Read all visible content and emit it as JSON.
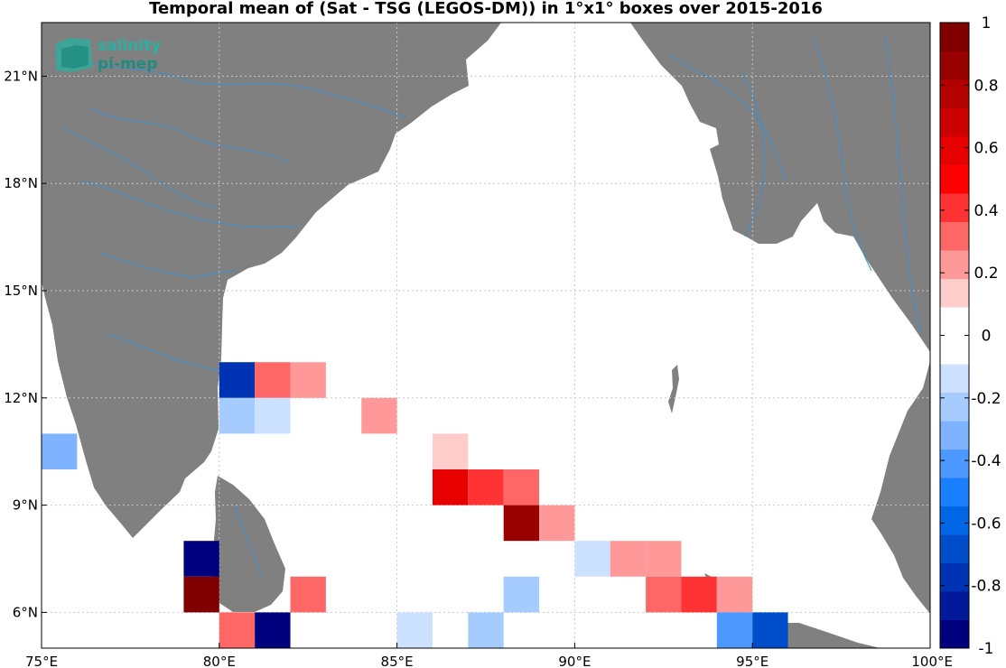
{
  "chart_data": {
    "type": "heatmap",
    "title": "Temporal mean of (Sat - TSG (LEGOS-DM)) in 1°x1° boxes over 2015-2016",
    "xlabel": "",
    "ylabel": "",
    "xlim": [
      75,
      100
    ],
    "ylim": [
      5,
      22.5
    ],
    "grid": true,
    "x_ticks": [
      {
        "value": 75,
        "label": "75°E"
      },
      {
        "value": 80,
        "label": "80°E"
      },
      {
        "value": 85,
        "label": "85°E"
      },
      {
        "value": 90,
        "label": "90°E"
      },
      {
        "value": 95,
        "label": "95°E"
      },
      {
        "value": 100,
        "label": "100°E"
      }
    ],
    "y_ticks": [
      {
        "value": 6,
        "label": "6°N"
      },
      {
        "value": 9,
        "label": "9°N"
      },
      {
        "value": 12,
        "label": "12°N"
      },
      {
        "value": 15,
        "label": "15°N"
      },
      {
        "value": 18,
        "label": "18°N"
      },
      {
        "value": 21,
        "label": "21°N"
      }
    ],
    "colorbar": {
      "range": [
        -1,
        1
      ],
      "step": 0.1,
      "ticks": [
        {
          "value": 1,
          "label": "1"
        },
        {
          "value": 0.8,
          "label": "0.8"
        },
        {
          "value": 0.6,
          "label": "0.6"
        },
        {
          "value": 0.4,
          "label": "0.4"
        },
        {
          "value": 0.2,
          "label": "0.2"
        },
        {
          "value": 0,
          "label": "0"
        },
        {
          "value": -0.2,
          "label": "-0.2"
        },
        {
          "value": -0.4,
          "label": "-0.4"
        },
        {
          "value": -0.6,
          "label": "-0.6"
        },
        {
          "value": -0.8,
          "label": "-0.8"
        },
        {
          "value": -1,
          "label": "-1"
        }
      ],
      "colors": [
        "#00007f",
        "#001a99",
        "#0033b3",
        "#004dcc",
        "#0066e6",
        "#1a80ff",
        "#4d99ff",
        "#80b3ff",
        "#a6ccff",
        "#cce0ff",
        "#ffffff",
        "#ffffff",
        "#ffcccc",
        "#ff9999",
        "#ff6666",
        "#ff3333",
        "#ff0000",
        "#e60000",
        "#cc0000",
        "#b30000",
        "#990000",
        "#800000"
      ]
    },
    "cells": [
      {
        "lon": 80.5,
        "lat": 12.5,
        "value": -0.75
      },
      {
        "lon": 81.5,
        "lat": 12.5,
        "value": 0.35
      },
      {
        "lon": 82.5,
        "lat": 12.5,
        "value": 0.25
      },
      {
        "lon": 80.5,
        "lat": 11.5,
        "value": -0.25
      },
      {
        "lon": 81.5,
        "lat": 11.5,
        "value": -0.15
      },
      {
        "lon": 84.5,
        "lat": 11.5,
        "value": 0.25
      },
      {
        "lon": 75.5,
        "lat": 10.5,
        "value": -0.35
      },
      {
        "lon": 86.5,
        "lat": 10.5,
        "value": 0.15
      },
      {
        "lon": 86.5,
        "lat": 9.5,
        "value": 0.55
      },
      {
        "lon": 87.5,
        "lat": 9.5,
        "value": 0.45
      },
      {
        "lon": 88.5,
        "lat": 9.5,
        "value": 0.35
      },
      {
        "lon": 88.5,
        "lat": 8.5,
        "value": 0.85
      },
      {
        "lon": 89.5,
        "lat": 8.5,
        "value": 0.25
      },
      {
        "lon": 79.5,
        "lat": 7.5,
        "value": -0.95
      },
      {
        "lon": 90.5,
        "lat": 7.5,
        "value": -0.15
      },
      {
        "lon": 91.5,
        "lat": 7.5,
        "value": 0.25
      },
      {
        "lon": 92.5,
        "lat": 7.5,
        "value": 0.25
      },
      {
        "lon": 79.5,
        "lat": 6.5,
        "value": 0.95
      },
      {
        "lon": 82.5,
        "lat": 6.5,
        "value": 0.35
      },
      {
        "lon": 88.5,
        "lat": 6.5,
        "value": -0.25
      },
      {
        "lon": 92.5,
        "lat": 6.5,
        "value": 0.35
      },
      {
        "lon": 93.5,
        "lat": 6.5,
        "value": 0.45
      },
      {
        "lon": 94.5,
        "lat": 6.5,
        "value": 0.25
      },
      {
        "lon": 80.5,
        "lat": 5.5,
        "value": 0.35
      },
      {
        "lon": 81.5,
        "lat": 5.5,
        "value": -0.95
      },
      {
        "lon": 85.5,
        "lat": 5.5,
        "value": -0.15
      },
      {
        "lon": 87.5,
        "lat": 5.5,
        "value": -0.25
      },
      {
        "lon": 94.5,
        "lat": 5.5,
        "value": -0.45
      },
      {
        "lon": 95.5,
        "lat": 5.5,
        "value": -0.65
      }
    ]
  },
  "colors": {
    "land": "#808080",
    "rivers": "#3a8fd0",
    "ocean": "#ffffff",
    "grid": "#c8c8c8"
  },
  "logo": {
    "line1": "salinity",
    "line2": "pi-mep",
    "color": "#2ab0a0"
  }
}
